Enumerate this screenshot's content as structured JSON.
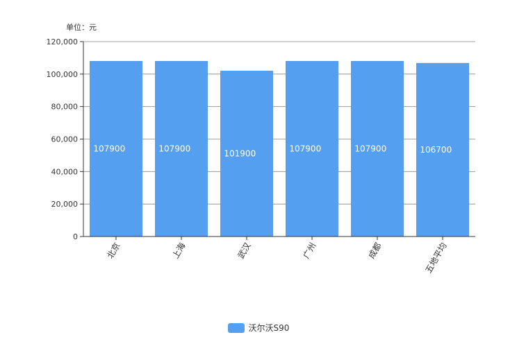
{
  "colors": {
    "bar": "#559ff0",
    "bar_stroke": "#4a8fdd",
    "axis": "#333333",
    "grid": "#888888",
    "label_inside": "#ffffff",
    "text": "#333333"
  },
  "chart_data": {
    "type": "bar",
    "unit_label": "单位：元",
    "categories": [
      "北京",
      "上海",
      "武汉",
      "广州",
      "成都",
      "五地平均"
    ],
    "series": [
      {
        "name": "沃尔沃S90",
        "values": [
          107900,
          107900,
          101900,
          107900,
          107900,
          106700
        ]
      }
    ],
    "data_labels": [
      "107900",
      "107900",
      "101900",
      "107900",
      "107900",
      "106700"
    ],
    "y_ticks": [
      0,
      20000,
      40000,
      60000,
      80000,
      100000,
      120000
    ],
    "y_tick_labels": [
      "0",
      "20,000",
      "40,000",
      "60,000",
      "80,000",
      "100,000",
      "120,000"
    ],
    "ylim": [
      0,
      120000
    ],
    "grid": true,
    "legend_position": "bottom-center",
    "x_label_rotation": "rotated"
  }
}
